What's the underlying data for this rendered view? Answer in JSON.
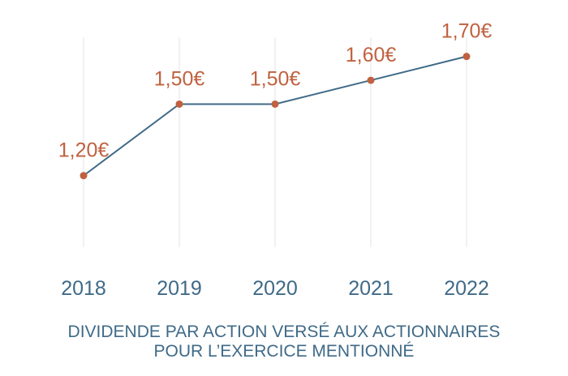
{
  "chart_data": {
    "type": "line",
    "categories": [
      "2018",
      "2019",
      "2020",
      "2021",
      "2022"
    ],
    "series": [
      {
        "values": [
          1.2,
          1.5,
          1.5,
          1.6,
          1.7
        ]
      }
    ],
    "data_labels": [
      "1,20€",
      "1,50€",
      "1,50€",
      "1,60€",
      "1,70€"
    ],
    "caption_lines": [
      "DIVIDENDE PAR ACTION VERSÉ AUX ACTIONNAIRES",
      "POUR L’EXERCICE MENTIONNÉ"
    ],
    "ylim": [
      0.9,
      1.76
    ],
    "grid": "vertical",
    "colors": {
      "line": "#3f6a87",
      "marker": "#c0613f",
      "label": "#c0613f",
      "tick": "#3f6a87",
      "grid": "#e3e3e3"
    }
  }
}
